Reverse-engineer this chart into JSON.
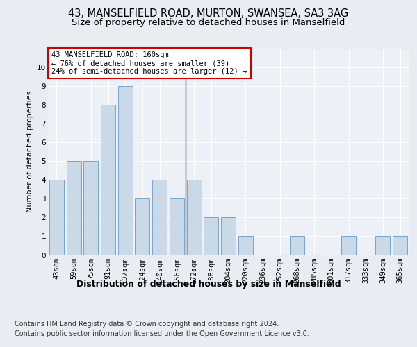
{
  "title": "43, MANSELFIELD ROAD, MURTON, SWANSEA, SA3 3AG",
  "subtitle": "Size of property relative to detached houses in Manselfield",
  "xlabel": "Distribution of detached houses by size in Manselfield",
  "ylabel": "Number of detached properties",
  "categories": [
    "43sqm",
    "59sqm",
    "75sqm",
    "91sqm",
    "107sqm",
    "124sqm",
    "140sqm",
    "156sqm",
    "172sqm",
    "188sqm",
    "204sqm",
    "220sqm",
    "236sqm",
    "252sqm",
    "268sqm",
    "285sqm",
    "301sqm",
    "317sqm",
    "333sqm",
    "349sqm",
    "365sqm"
  ],
  "values": [
    4,
    5,
    5,
    8,
    9,
    3,
    4,
    3,
    4,
    2,
    2,
    1,
    0,
    0,
    1,
    0,
    0,
    1,
    0,
    1,
    1
  ],
  "bar_color": "#c9d9e8",
  "bar_edge_color": "#7aaan9",
  "annotation_box_text": "43 MANSELFIELD ROAD: 160sqm\n← 76% of detached houses are smaller (39)\n24% of semi-detached houses are larger (12) →",
  "annotation_box_color": "#ffffff",
  "annotation_box_edge_color": "#cc0000",
  "vline_color": "#333333",
  "ylim": [
    0,
    11
  ],
  "yticks": [
    0,
    1,
    2,
    3,
    4,
    5,
    6,
    7,
    8,
    9,
    10,
    11
  ],
  "footer1": "Contains HM Land Registry data © Crown copyright and database right 2024.",
  "footer2": "Contains public sector information licensed under the Open Government Licence v3.0.",
  "bg_color": "#e8edf4",
  "plot_bg_color": "#edf0f7",
  "grid_color": "#ffffff",
  "title_fontsize": 10.5,
  "subtitle_fontsize": 9.5,
  "xlabel_fontsize": 9,
  "ylabel_fontsize": 8,
  "tick_fontsize": 7.5,
  "footer_fontsize": 7
}
